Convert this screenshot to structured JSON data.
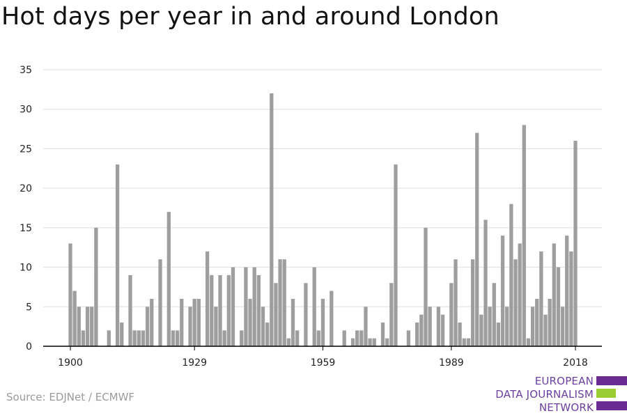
{
  "title": "Hot days per year in and around London",
  "source": "Source: EDJNet / ECMWF",
  "logo": {
    "lines": [
      "EUROPEAN",
      "DATA JOURNALISM",
      "NETWORK"
    ],
    "colors": {
      "purple": "#6b2c91",
      "green": "#9acd32"
    }
  },
  "colors": {
    "bar": "#9e9e9e",
    "grid": "#dddddd",
    "axis": "#000000"
  },
  "chart_data": {
    "type": "bar",
    "title": "Hot days per year in and around London",
    "xlabel": "",
    "ylabel": "",
    "ylim": [
      0,
      35
    ],
    "yticks": [
      0,
      5,
      10,
      15,
      20,
      25,
      30,
      35
    ],
    "xticks": [
      1900,
      1929,
      1959,
      1989,
      2018
    ],
    "grid": true,
    "start_year": 1900,
    "end_year": 2018,
    "categories": [
      1900,
      1901,
      1902,
      1903,
      1904,
      1905,
      1906,
      1907,
      1908,
      1909,
      1910,
      1911,
      1912,
      1913,
      1914,
      1915,
      1916,
      1917,
      1918,
      1919,
      1920,
      1921,
      1922,
      1923,
      1924,
      1925,
      1926,
      1927,
      1928,
      1929,
      1930,
      1931,
      1932,
      1933,
      1934,
      1935,
      1936,
      1937,
      1938,
      1939,
      1940,
      1941,
      1942,
      1943,
      1944,
      1945,
      1946,
      1947,
      1948,
      1949,
      1950,
      1951,
      1952,
      1953,
      1954,
      1955,
      1956,
      1957,
      1958,
      1959,
      1960,
      1961,
      1962,
      1963,
      1964,
      1965,
      1966,
      1967,
      1968,
      1969,
      1970,
      1971,
      1972,
      1973,
      1974,
      1975,
      1976,
      1977,
      1978,
      1979,
      1980,
      1981,
      1982,
      1983,
      1984,
      1985,
      1986,
      1987,
      1988,
      1989,
      1990,
      1991,
      1992,
      1993,
      1994,
      1995,
      1996,
      1997,
      1998,
      1999,
      2000,
      2001,
      2002,
      2003,
      2004,
      2005,
      2006,
      2007,
      2008,
      2009,
      2010,
      2011,
      2012,
      2013,
      2014,
      2015,
      2016,
      2017,
      2018
    ],
    "values": [
      13,
      7,
      5,
      2,
      5,
      5,
      15,
      0,
      0,
      2,
      0,
      23,
      3,
      0,
      9,
      2,
      2,
      2,
      5,
      6,
      0,
      11,
      0,
      17,
      2,
      2,
      6,
      0,
      5,
      6,
      6,
      0,
      12,
      9,
      5,
      9,
      2,
      9,
      10,
      0,
      2,
      10,
      6,
      10,
      9,
      5,
      3,
      32,
      8,
      11,
      11,
      1,
      6,
      2,
      0,
      8,
      0,
      10,
      2,
      6,
      0,
      7,
      0,
      0,
      2,
      0,
      1,
      2,
      2,
      5,
      1,
      1,
      0,
      3,
      1,
      8,
      23,
      0,
      0,
      2,
      0,
      3,
      4,
      15,
      5,
      0,
      5,
      4,
      0,
      8,
      11,
      3,
      1,
      1,
      11,
      27,
      4,
      16,
      5,
      8,
      3,
      14,
      5,
      18,
      11,
      13,
      28,
      1,
      5,
      6,
      12,
      4,
      6,
      13,
      10,
      5,
      14,
      12,
      26
    ]
  }
}
